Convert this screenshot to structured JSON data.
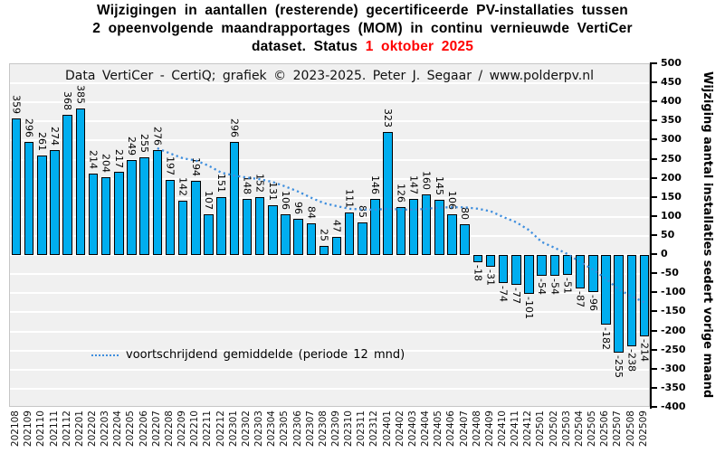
{
  "title": {
    "line1": "Wijzigingen in aantallen (resterende) gecertificeerde PV-installaties tussen",
    "line2": "2 opeenvolgende maandrapportages (MOM) in continu vernieuwde VertiCer",
    "line3_prefix": "dataset. Status ",
    "line3_date": "1 oktober 2025"
  },
  "subtitle": "Data VertiCer - CertiQ;  grafiek © 2023-2025.  Peter J. Segaar / www.polderpv.nl",
  "legend": {
    "label": "voortschrijdend gemiddelde  (periode 12 mnd)"
  },
  "y_axis": {
    "title": "Wijziging aantal installaties sedert vorige maand",
    "max": 500,
    "min": -400,
    "step": 50
  },
  "colors": {
    "bar_fill": "#00aeef",
    "bar_border": "#000000",
    "ma_line": "#3e8ede",
    "title_highlight": "#ff0000",
    "plot_bg": "#f0f0f0",
    "gridline": "#ffffff"
  },
  "chart_data": {
    "type": "bar",
    "title": "Wijzigingen in aantallen (resterende) gecertificeerde PV-installaties tussen 2 opeenvolgende maandrapportages (MOM) in continu vernieuwde VertiCer dataset. Status 1 oktober 2025",
    "xlabel": "",
    "ylabel": "Wijziging aantal installaties sedert vorige maand",
    "ylim": [
      -400,
      500
    ],
    "grid": true,
    "legend_position": "inside-bottom-left",
    "categories": [
      "202108",
      "202109",
      "202110",
      "202111",
      "202112",
      "202201",
      "202202",
      "202203",
      "202204",
      "202205",
      "202206",
      "202207",
      "202208",
      "202209",
      "202210",
      "202211",
      "202212",
      "202301",
      "202302",
      "202303",
      "202304",
      "202305",
      "202306",
      "202307",
      "202308",
      "202309",
      "202310",
      "202311",
      "202312",
      "202401",
      "202402",
      "202403",
      "202404",
      "202405",
      "202406",
      "202407",
      "202408",
      "202409",
      "202410",
      "202411",
      "202412",
      "202501",
      "202502",
      "202503",
      "202504",
      "202505",
      "202506",
      "202507",
      "202508",
      "202509"
    ],
    "series": [
      {
        "name": "Wijziging aantal installaties sedert vorige maand",
        "type": "bar",
        "values": [
          359,
          296,
          261,
          274,
          368,
          385,
          214,
          204,
          217,
          249,
          255,
          276,
          197,
          142,
          194,
          107,
          151,
          296,
          148,
          152,
          131,
          106,
          96,
          84,
          25,
          47,
          111,
          85,
          146,
          323,
          126,
          147,
          160,
          145,
          106,
          80,
          -18,
          -31,
          -74,
          -77,
          -101,
          -54,
          -54,
          -51,
          -87,
          -96,
          -182,
          -255,
          -238,
          -214
        ]
      },
      {
        "name": "voortschrijdend gemiddelde (periode 12 mnd)",
        "type": "line",
        "values": [
          null,
          null,
          null,
          null,
          null,
          null,
          null,
          null,
          null,
          null,
          null,
          279.8,
          266.3,
          253.5,
          247.9,
          234.0,
          215.9,
          208.5,
          203.0,
          198.7,
          191.5,
          179.6,
          166.3,
          150.3,
          136.0,
          128.1,
          121.2,
          119.3,
          118.9,
          121.2,
          119.3,
          118.9,
          121.3,
          124.6,
          125.4,
          125.1,
          121.5,
          115.0,
          99.6,
          86.1,
          65.5,
          34.1,
          19.1,
          2.6,
          -18.0,
          -38.1,
          -62.1,
          -90.0,
          -108.3,
          -123.6
        ]
      }
    ]
  }
}
